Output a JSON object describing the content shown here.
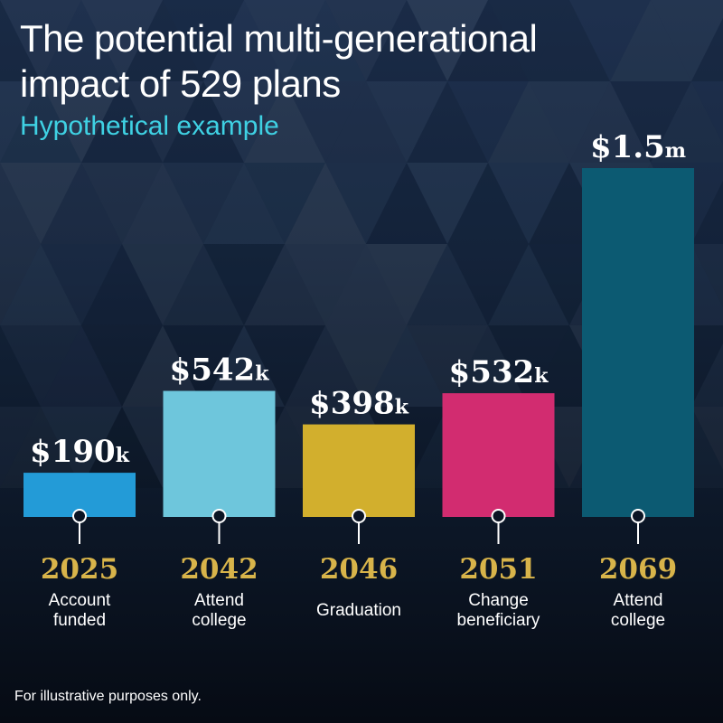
{
  "title": "The potential multi-generational impact of 529 plans",
  "subtitle": "Hypothetical example",
  "footnote": "For illustrative purposes only.",
  "colors": {
    "title": "#ffffff",
    "subtitle": "#3fd1e3",
    "year": "#d8b44a",
    "background_top": "#1b2d4a",
    "background_bottom": "#060b14"
  },
  "chart_data": {
    "type": "bar",
    "title": "The potential multi-generational impact of 529 plans",
    "subtitle": "Hypothetical example",
    "xlabel": "",
    "ylabel": "",
    "ylim": [
      0,
      1500
    ],
    "grid": false,
    "legend": "none",
    "categories": [
      "2025",
      "2042",
      "2046",
      "2051",
      "2069"
    ],
    "events": [
      [
        "Account",
        "funded"
      ],
      [
        "Attend",
        "college"
      ],
      [
        "Graduation"
      ],
      [
        "Change",
        "beneficiary"
      ],
      [
        "Attend",
        "college"
      ]
    ],
    "values": [
      190,
      542,
      398,
      532,
      1500
    ],
    "value_units": "thousands of dollars",
    "data_labels": [
      {
        "main": "$190",
        "suffix": "k"
      },
      {
        "main": "$542",
        "suffix": "k"
      },
      {
        "main": "$398",
        "suffix": "k"
      },
      {
        "main": "$532",
        "suffix": "k"
      },
      {
        "main": "$1.5",
        "suffix": "m"
      }
    ],
    "bar_colors": [
      "#239bd7",
      "#6ec6dc",
      "#d2af2d",
      "#d22c70",
      "#0c5a72"
    ]
  }
}
